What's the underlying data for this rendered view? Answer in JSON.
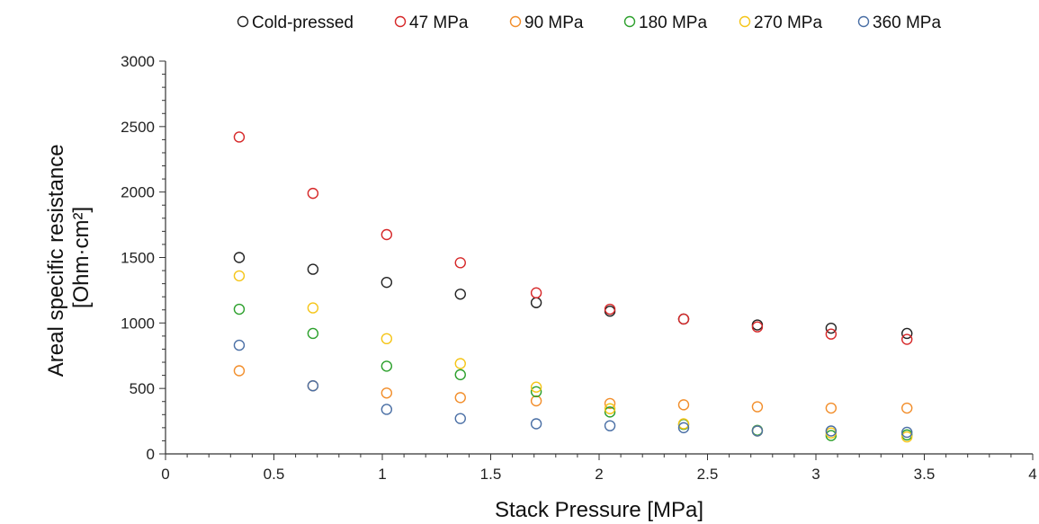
{
  "chart_data": {
    "type": "scatter",
    "xlabel": "Stack Pressure [MPa]",
    "ylabel_line1": "Areal specific resistance",
    "ylabel_line2": "[Ohm·cm²]",
    "xlim": [
      0,
      4
    ],
    "ylim": [
      0,
      3000
    ],
    "xticks": [
      "0",
      "0.5",
      "1",
      "1.5",
      "2",
      "2.5",
      "3",
      "3.5",
      "4"
    ],
    "yticks": [
      "0",
      "500",
      "1000",
      "1500",
      "2000",
      "2500",
      "3000"
    ],
    "grid": false,
    "legend_position": "top",
    "x": [
      0.34,
      0.68,
      1.02,
      1.36,
      1.71,
      2.05,
      2.39,
      2.73,
      3.07,
      3.42
    ],
    "series": [
      {
        "name": "Cold-pressed",
        "color": "#222222",
        "values": [
          1500,
          1410,
          1310,
          1220,
          1155,
          1090,
          1030,
          985,
          960,
          920
        ]
      },
      {
        "name": "47 MPa",
        "color": "#d62728",
        "values": [
          2420,
          1990,
          1675,
          1460,
          1230,
          1105,
          1030,
          970,
          915,
          875
        ]
      },
      {
        "name": "90 MPa",
        "color": "#f28e2b",
        "values": [
          635,
          520,
          465,
          430,
          405,
          385,
          375,
          360,
          350,
          350
        ]
      },
      {
        "name": "180 MPa",
        "color": "#2ca02c",
        "values": [
          1105,
          920,
          670,
          605,
          475,
          320,
          225,
          180,
          140,
          145
        ]
      },
      {
        "name": "270 MPa",
        "color": "#f5c518",
        "values": [
          1360,
          1115,
          880,
          690,
          510,
          345,
          230,
          175,
          160,
          130
        ]
      },
      {
        "name": "360 MPa",
        "color": "#4a6fa5",
        "values": [
          830,
          520,
          340,
          270,
          230,
          215,
          200,
          175,
          175,
          165
        ]
      }
    ]
  }
}
